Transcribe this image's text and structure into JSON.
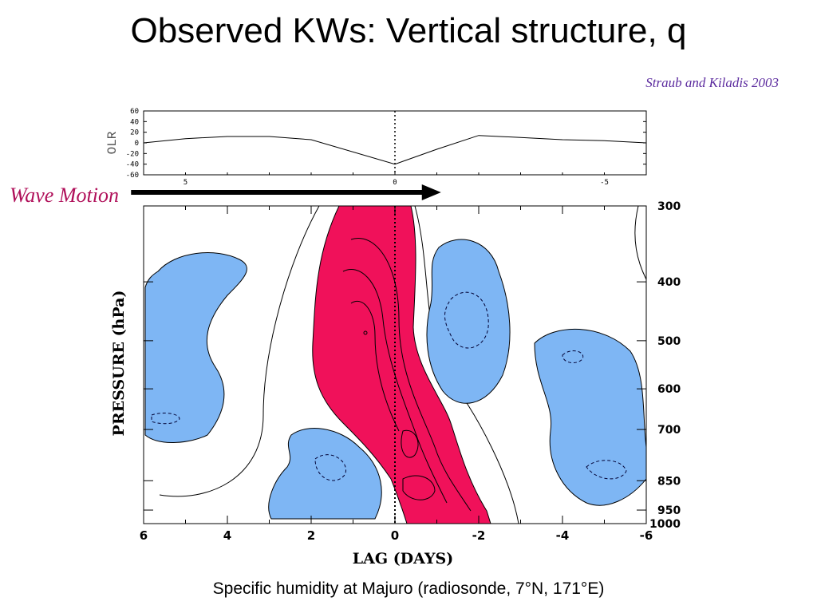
{
  "slide": {
    "title": "Observed KWs: Vertical structure, q",
    "citation": "Straub and Kiladis 2003",
    "caption": "Specific humidity at Majuro (radiosonde, 7°N, 171°E)"
  },
  "colors": {
    "positive_fill": "#f0115a",
    "negative_fill": "#7eb6f4",
    "wave_label": "#b0105a",
    "citation": "#5b2a9e"
  },
  "chart_data": [
    {
      "type": "line",
      "panel": "olr",
      "ylabel": "OLR",
      "x_reversed": true,
      "xlim": [
        6,
        -6
      ],
      "ylim": [
        -60,
        60
      ],
      "yticks": [
        "60",
        "40",
        "20",
        "0",
        "-20",
        "-40",
        "-60"
      ],
      "xticks": [
        "5",
        "0",
        "-5"
      ],
      "x": [
        6,
        5,
        4,
        3,
        2,
        0,
        -1,
        -2,
        -3,
        -4,
        -5,
        -6
      ],
      "y": [
        0,
        8,
        12,
        12,
        6,
        -40,
        -12,
        14,
        10,
        6,
        4,
        0
      ],
      "annotations": [
        {
          "text": "Wave Motion",
          "type": "arrow",
          "from_lag": 6.3,
          "to_lag": -1.1
        }
      ]
    },
    {
      "type": "heatmap",
      "panel": "humidity",
      "xlabel": "LAG (DAYS)",
      "ylabel": "PRESSURE (hPa)",
      "x_reversed": true,
      "xlim": [
        6,
        -6
      ],
      "xticks": [
        "6",
        "4",
        "2",
        "0",
        "-2",
        "-4",
        "-6"
      ],
      "pressure_ticks": [
        "300",
        "400",
        "500",
        "600",
        "700",
        "850",
        "950",
        "1000"
      ],
      "zero_lag_line": true,
      "regions": [
        {
          "sign": "positive",
          "lag": [
            2.0,
            -2.3
          ],
          "pressure": [
            300,
            1000
          ]
        },
        {
          "sign": "negative",
          "lag": [
            6.0,
            3.6
          ],
          "pressure": [
            360,
            720
          ]
        },
        {
          "sign": "negative",
          "lag": [
            3.0,
            0.4
          ],
          "pressure": [
            700,
            1000
          ]
        },
        {
          "sign": "negative",
          "lag": [
            -0.8,
            -2.6
          ],
          "pressure": [
            340,
            660
          ]
        },
        {
          "sign": "negative",
          "lag": [
            -3.4,
            -6.0
          ],
          "pressure": [
            470,
            900
          ]
        }
      ]
    }
  ]
}
